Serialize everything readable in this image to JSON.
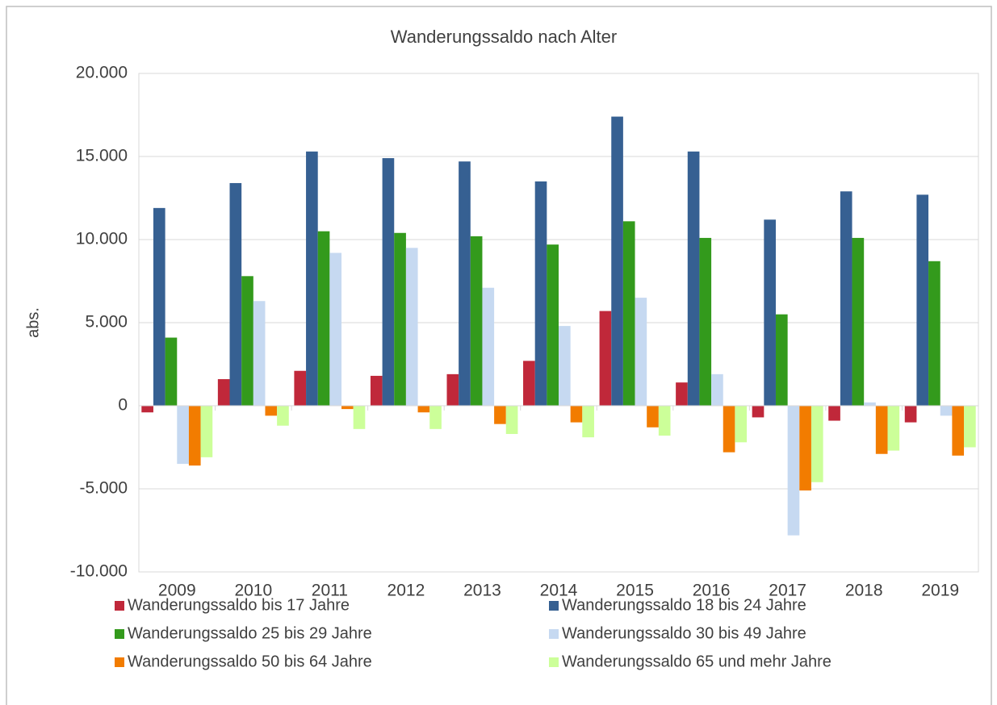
{
  "chart_data": {
    "type": "bar",
    "title": "Wanderungssaldo nach Alter",
    "y_label": "abs.",
    "categories": [
      "2009",
      "2010",
      "2011",
      "2012",
      "2013",
      "2014",
      "2015",
      "2016",
      "2017",
      "2018",
      "2019"
    ],
    "series": [
      {
        "name": "Wanderungssaldo bis 17 Jahre",
        "color": "#c0283a",
        "values": [
          -400,
          1600,
          2100,
          1800,
          1900,
          2700,
          5700,
          1400,
          -700,
          -900,
          -1000
        ]
      },
      {
        "name": "Wanderungssaldo 18 bis 24 Jahre",
        "color": "#366092",
        "values": [
          11900,
          13400,
          15300,
          14900,
          14700,
          13500,
          17400,
          15300,
          11200,
          12900,
          12700
        ]
      },
      {
        "name": "Wanderungssaldo 25 bis 29 Jahre",
        "color": "#339a1c",
        "values": [
          4100,
          7800,
          10500,
          10400,
          10200,
          9700,
          11100,
          10100,
          5500,
          10100,
          8700
        ]
      },
      {
        "name": "Wanderungssaldo 30 bis 49 Jahre",
        "color": "#c6d9f1",
        "values": [
          -3500,
          6300,
          9200,
          9500,
          7100,
          4800,
          6500,
          1900,
          -7800,
          200,
          -600
        ]
      },
      {
        "name": "Wanderungssaldo 50 bis 64 Jahre",
        "color": "#f27c00",
        "values": [
          -3600,
          -600,
          -200,
          -400,
          -1100,
          -1000,
          -1300,
          -2800,
          -5100,
          -2900,
          -3000
        ]
      },
      {
        "name": "Wanderungssaldo 65 und mehr Jahre",
        "color": "#ccff99",
        "values": [
          -3100,
          -1200,
          -1400,
          -1400,
          -1700,
          -1900,
          -1800,
          -2200,
          -4600,
          -2700,
          -2500
        ]
      }
    ],
    "ylim": [
      -10000,
      20000
    ],
    "yticks": [
      {
        "value": -10000,
        "label": "-10.000"
      },
      {
        "value": -5000,
        "label": "-5.000"
      },
      0,
      {
        "value": 5000,
        "label": "5.000"
      },
      {
        "value": 10000,
        "label": "10.000"
      },
      {
        "value": 15000,
        "label": "15.000"
      },
      {
        "value": 20000,
        "label": "20.000"
      }
    ],
    "grid": true,
    "legend": "bottom"
  }
}
